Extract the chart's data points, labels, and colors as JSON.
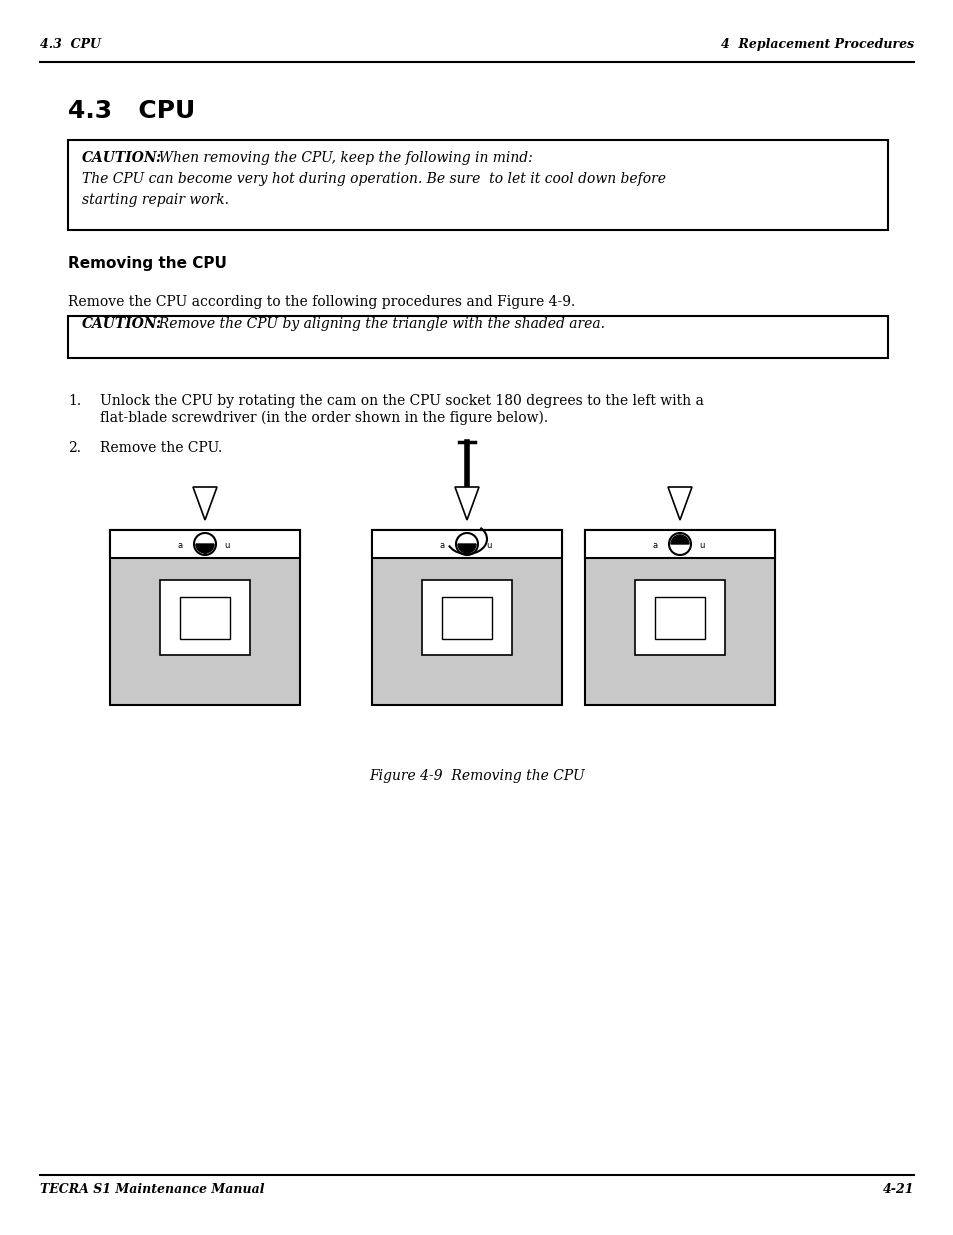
{
  "header_left": "4.3  CPU",
  "header_right": "4  Replacement Procedures",
  "footer_left": "TECRA S1 Maintenance Manual",
  "footer_right": "4-21",
  "section_title": "4.3   CPU",
  "caution1_bold": "CAUTION:",
  "caution1_text": "  When removing the CPU, keep the following in mind:\nThe CPU can become very hot during operation. Be sure  to let it cool down before\nstarting repair work.",
  "subsection_title": "Removing the CPU",
  "body_text1": "Remove the CPU according to the following procedures and Figure 4-9.",
  "caution2_bold": "CAUTION:",
  "caution2_text": "  Remove the CPU by aligning the triangle with the shaded area.",
  "step1": "1.\tUnlock the CPU by rotating the cam on the CPU socket 180 degrees to the left with a\n\tflat-blade screwdriver (in the order shown in the figure below).",
  "step2": "2.\tRemove the CPU.",
  "figure_caption": "Figure 4-9  Removing the CPU",
  "bg_color": "#ffffff",
  "text_color": "#000000",
  "box_border_color": "#000000",
  "gray_fill": "#c8c8c8",
  "light_gray": "#e0e0e0"
}
